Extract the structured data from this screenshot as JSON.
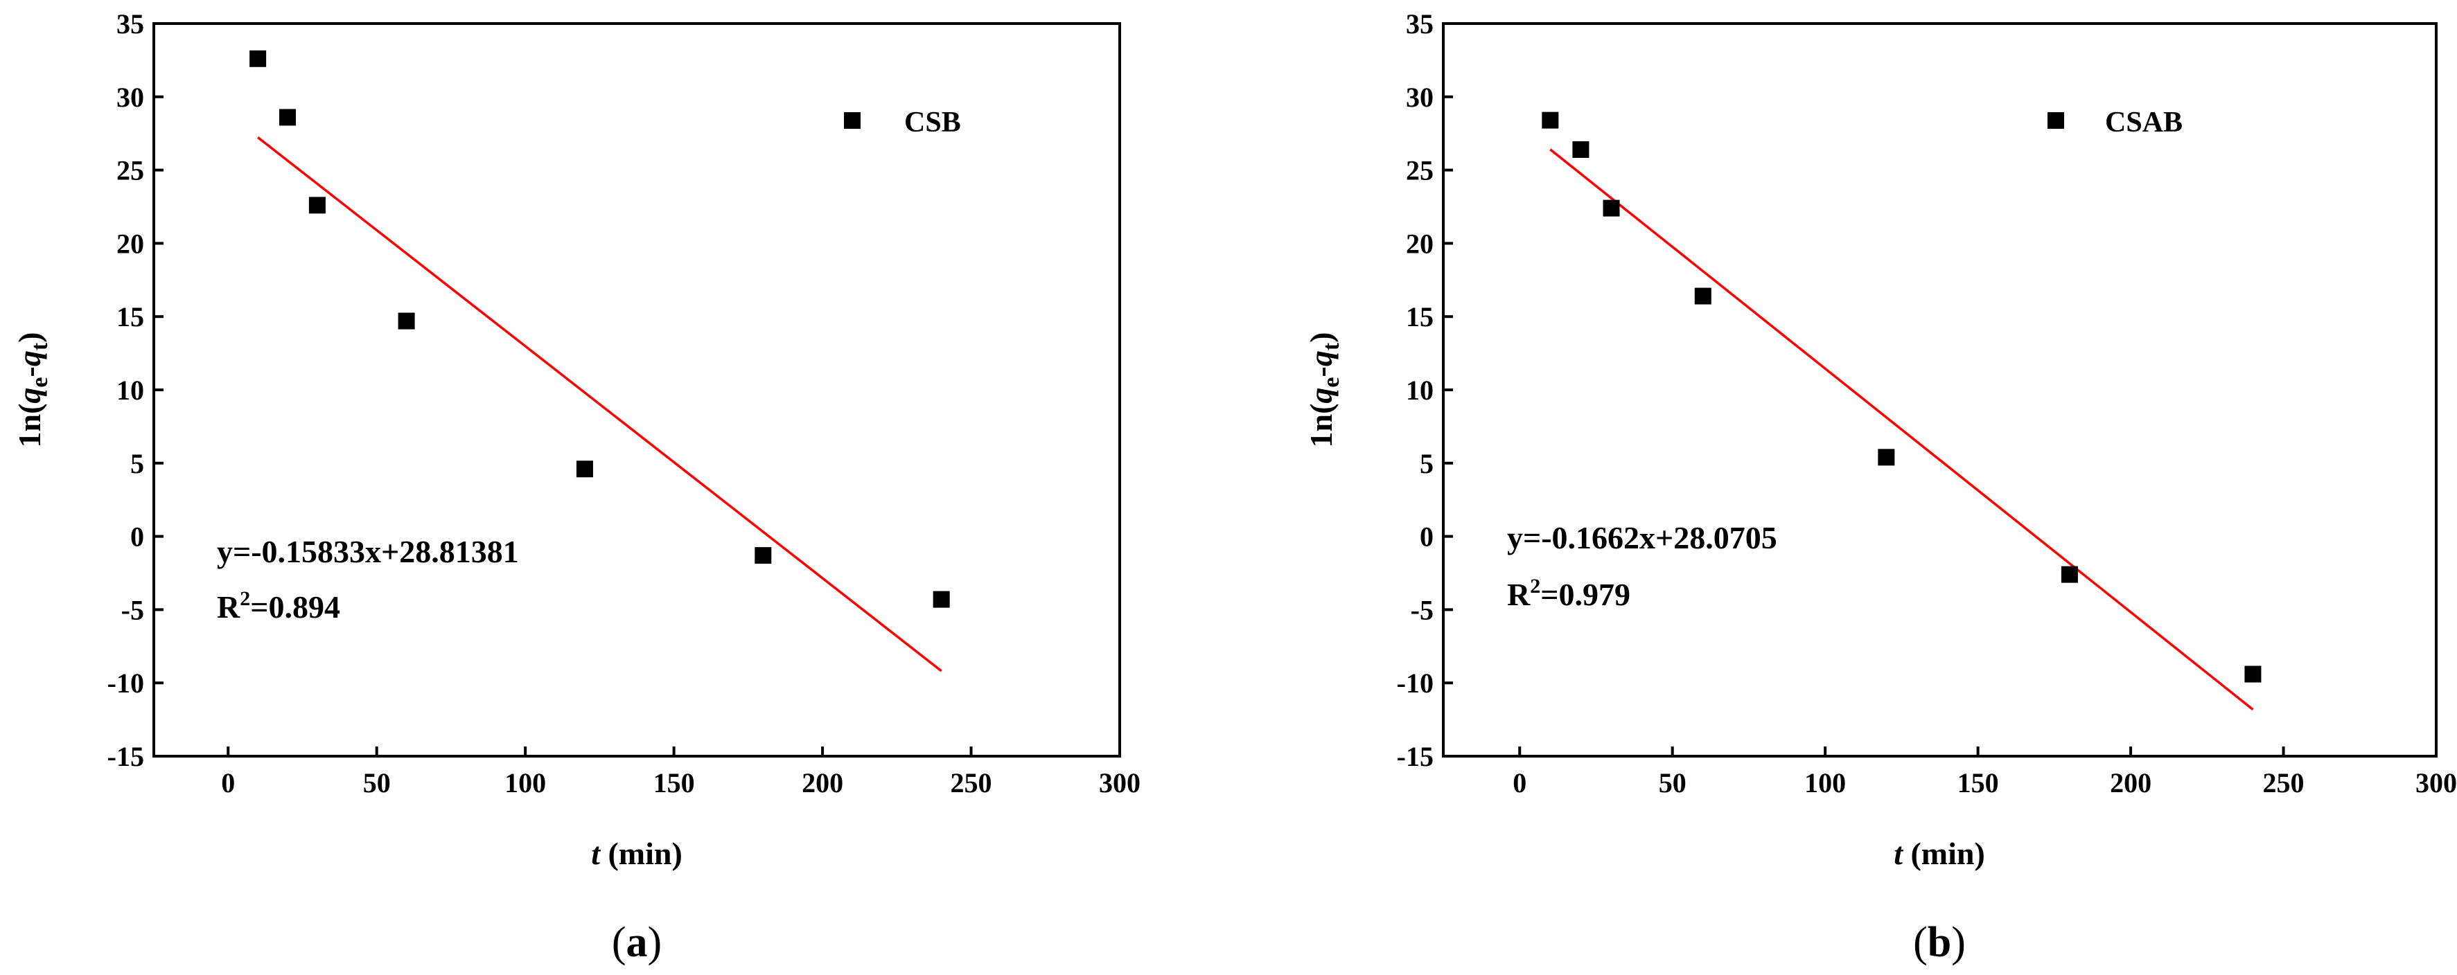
{
  "chart_data": [
    {
      "type": "scatter",
      "panel_label": "(a)",
      "xlabel": "t (min)",
      "xlabel_parts": {
        "var": "t",
        "unit": " (min)"
      },
      "ylabel": "ln(qe-qt)",
      "ylabel_parts": {
        "prefix": "1n(",
        "q1": "q",
        "sub1": "e",
        "dash": "-",
        "q2": "q",
        "sub2": "t",
        "suffix": ")"
      },
      "xlim": [
        -25,
        300
      ],
      "ylim": [
        -15,
        35
      ],
      "xticks": [
        0,
        50,
        100,
        150,
        200,
        250,
        300
      ],
      "xtick_labels": [
        "0",
        "50",
        "100",
        "150",
        "200",
        "250",
        "300"
      ],
      "yticks": [
        -15,
        -10,
        -5,
        0,
        5,
        10,
        15,
        20,
        25,
        30,
        35
      ],
      "ytick_labels": [
        "-15",
        "-10",
        "-5",
        "0",
        "5",
        "10",
        "15",
        "20",
        "25",
        "30",
        "35"
      ],
      "series": [
        {
          "name": "CSB",
          "color": "#000000",
          "marker": "square",
          "x": [
            10,
            20,
            30,
            60,
            120,
            180,
            240
          ],
          "y": [
            32.6,
            28.6,
            22.6,
            14.7,
            4.6,
            -1.3,
            -4.3
          ]
        }
      ],
      "fit": {
        "color": "#ff0000",
        "slope": -0.15833,
        "intercept": 28.81381,
        "x_range": [
          10,
          240
        ]
      },
      "equation": "y=-0.15833x+28.81381",
      "r2_label": "R",
      "r2_sup": "2",
      "r2_value": "=0.894",
      "legend": {
        "label": "CSB",
        "position": "top-right"
      }
    },
    {
      "type": "scatter",
      "panel_label": "(b)",
      "xlabel": "t (min)",
      "xlabel_parts": {
        "var": "t",
        "unit": " (min)"
      },
      "ylabel": "ln(qe-qt)",
      "ylabel_parts": {
        "prefix": "1n(",
        "q1": "q",
        "sub1": "e",
        "dash": "-",
        "q2": "q",
        "sub2": "t",
        "suffix": ")"
      },
      "xlim": [
        -25,
        300
      ],
      "ylim": [
        -15,
        35
      ],
      "xticks": [
        0,
        50,
        100,
        150,
        200,
        250,
        300
      ],
      "xtick_labels": [
        "0",
        "50",
        "100",
        "150",
        "200",
        "250",
        "300"
      ],
      "yticks": [
        -15,
        -10,
        -5,
        0,
        5,
        10,
        15,
        20,
        25,
        30,
        35
      ],
      "ytick_labels": [
        "-15",
        "-10",
        "-5",
        "0",
        "5",
        "10",
        "15",
        "20",
        "25",
        "30",
        "35"
      ],
      "series": [
        {
          "name": "CSAB",
          "color": "#000000",
          "marker": "square",
          "x": [
            10,
            20,
            30,
            60,
            120,
            180,
            240
          ],
          "y": [
            28.4,
            26.4,
            22.4,
            16.4,
            5.4,
            -2.6,
            -9.4
          ]
        }
      ],
      "fit": {
        "color": "#ff0000",
        "slope": -0.1662,
        "intercept": 28.0705,
        "x_range": [
          10,
          240
        ]
      },
      "equation": "y=-0.1662x+28.0705",
      "r2_label": "R",
      "r2_sup": "2",
      "r2_value": "=0.979",
      "legend": {
        "label": "CSAB",
        "position": "top-right"
      }
    }
  ]
}
